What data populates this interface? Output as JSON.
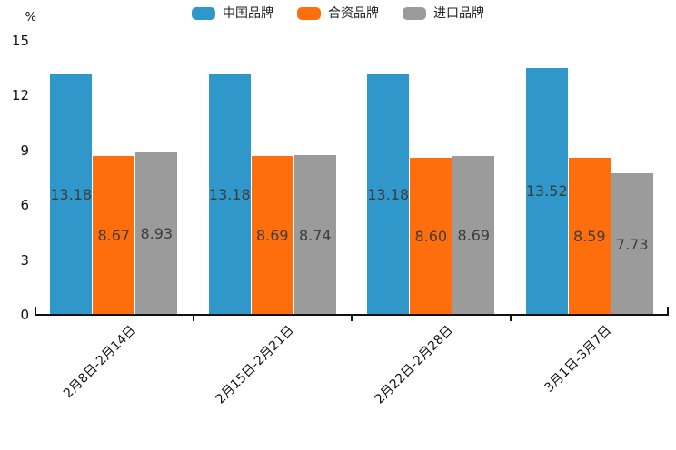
{
  "chart_data": {
    "type": "bar",
    "unit_label": "%",
    "categories": [
      "2月8日-2月14日",
      "2月15日-2月21日",
      "2月22日-2月28日",
      "3月1日-3月7日"
    ],
    "series": [
      {
        "name": "中国品牌",
        "color": "#2f97c9",
        "values": [
          13.18,
          13.18,
          13.18,
          13.52
        ]
      },
      {
        "name": "合资品牌",
        "color": "#fe6e0d",
        "values": [
          8.67,
          8.69,
          8.6,
          8.59
        ]
      },
      {
        "name": "进口品牌",
        "color": "#9b9b9b",
        "values": [
          8.93,
          8.74,
          8.69,
          7.73
        ]
      }
    ],
    "yticks": [
      0,
      3,
      6,
      9,
      12,
      15
    ],
    "ylim": [
      0,
      15
    ],
    "grid": false,
    "legend_position": "top",
    "value_labels_decimals": 2
  }
}
